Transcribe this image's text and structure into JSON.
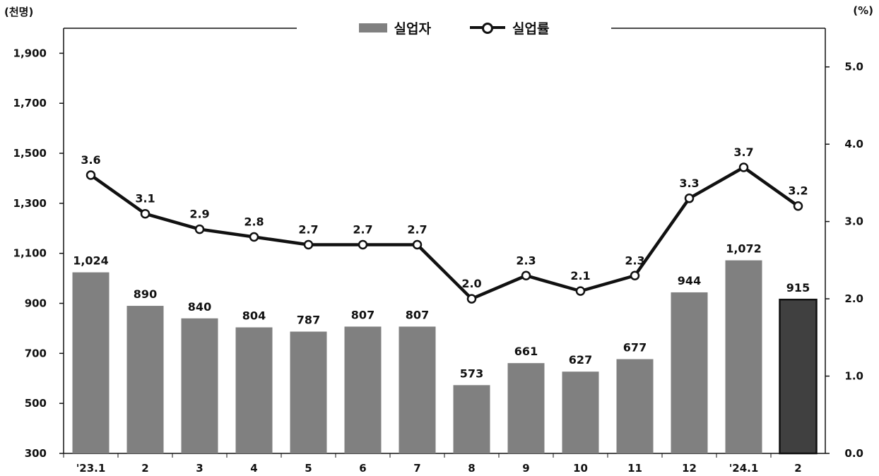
{
  "chart_data": {
    "type": "bar",
    "title": "",
    "left_unit": "(천명)",
    "right_unit": "(%)",
    "categories": [
      "'23.1",
      "2",
      "3",
      "4",
      "5",
      "6",
      "7",
      "8",
      "9",
      "10",
      "11",
      "12",
      "'24.1",
      "2"
    ],
    "series": [
      {
        "name": "실업자",
        "type": "bar",
        "axis": "left",
        "values": [
          1024,
          890,
          840,
          804,
          787,
          807,
          807,
          573,
          661,
          627,
          677,
          944,
          1072,
          915
        ],
        "labels": [
          "1,024",
          "890",
          "840",
          "804",
          "787",
          "807",
          "807",
          "573",
          "661",
          "627",
          "677",
          "944",
          "1,072",
          "915"
        ],
        "color": "#808080",
        "highlight_last_color": "#404040"
      },
      {
        "name": "실업률",
        "type": "line",
        "axis": "right",
        "values": [
          3.6,
          3.1,
          2.9,
          2.8,
          2.7,
          2.7,
          2.7,
          2.0,
          2.3,
          2.1,
          2.3,
          3.3,
          3.7,
          3.2
        ],
        "labels": [
          "3.6",
          "3.1",
          "2.9",
          "2.8",
          "2.7",
          "2.7",
          "2.7",
          "2.0",
          "2.3",
          "2.1",
          "2.3",
          "3.3",
          "3.7",
          "3.2"
        ],
        "color": "#111111"
      }
    ],
    "left_axis": {
      "range": [
        300,
        2000
      ],
      "ticks": [
        300,
        500,
        700,
        900,
        1100,
        1300,
        1500,
        1700,
        1900
      ],
      "tick_labels": [
        "300",
        "500",
        "700",
        "900",
        "1,100",
        "1,300",
        "1,500",
        "1,700",
        "1,900"
      ]
    },
    "right_axis": {
      "range": [
        0,
        5.5
      ],
      "ticks": [
        0,
        1,
        2,
        3,
        4,
        5
      ],
      "tick_labels": [
        "0.0",
        "1.0",
        "2.0",
        "3.0",
        "4.0",
        "5.0"
      ]
    },
    "grid": false,
    "legend_position": "top-center"
  }
}
